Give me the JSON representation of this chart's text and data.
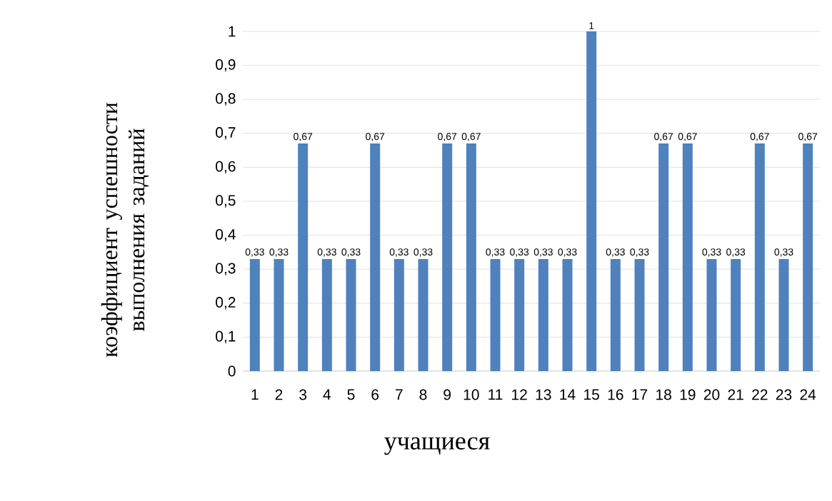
{
  "chart_data": {
    "type": "bar",
    "xlabel": "учащиеся",
    "ylabel": "коэффициент успешности выполнения заданий",
    "categories": [
      "1",
      "2",
      "3",
      "4",
      "5",
      "6",
      "7",
      "8",
      "9",
      "10",
      "11",
      "12",
      "13",
      "14",
      "15",
      "16",
      "17",
      "18",
      "19",
      "20",
      "21",
      "22",
      "23",
      "24"
    ],
    "values": [
      0.33,
      0.33,
      0.67,
      0.33,
      0.33,
      0.67,
      0.33,
      0.33,
      0.67,
      0.67,
      0.33,
      0.33,
      0.33,
      0.33,
      1,
      0.33,
      0.33,
      0.67,
      0.67,
      0.33,
      0.33,
      0.67,
      0.33,
      0.67
    ],
    "value_labels": [
      "0,33",
      "0,33",
      "0,67",
      "0,33",
      "0,33",
      "0,67",
      "0,33",
      "0,33",
      "0,67",
      "0,67",
      "0,33",
      "0,33",
      "0,33",
      "0,33",
      "1",
      "0,33",
      "0,33",
      "0,67",
      "0,67",
      "0,33",
      "0,33",
      "0,67",
      "0,33",
      "0,67"
    ],
    "color": "#4f81bd",
    "ylim": [
      0,
      1
    ],
    "yticks": [
      0,
      {
        "value": 0.1,
        "label": "0,1"
      },
      {
        "value": 0.2,
        "label": "0,2"
      },
      {
        "value": 0.3,
        "label": "0,3"
      },
      {
        "value": 0.4,
        "label": "0,4"
      },
      {
        "value": 0.5,
        "label": "0,5"
      },
      {
        "value": 0.6,
        "label": "0,6"
      },
      {
        "value": 0.7,
        "label": "0,7"
      },
      {
        "value": 0.8,
        "label": "0,8"
      },
      {
        "value": 0.9,
        "label": "0,9"
      },
      1
    ],
    "grid": "y"
  }
}
